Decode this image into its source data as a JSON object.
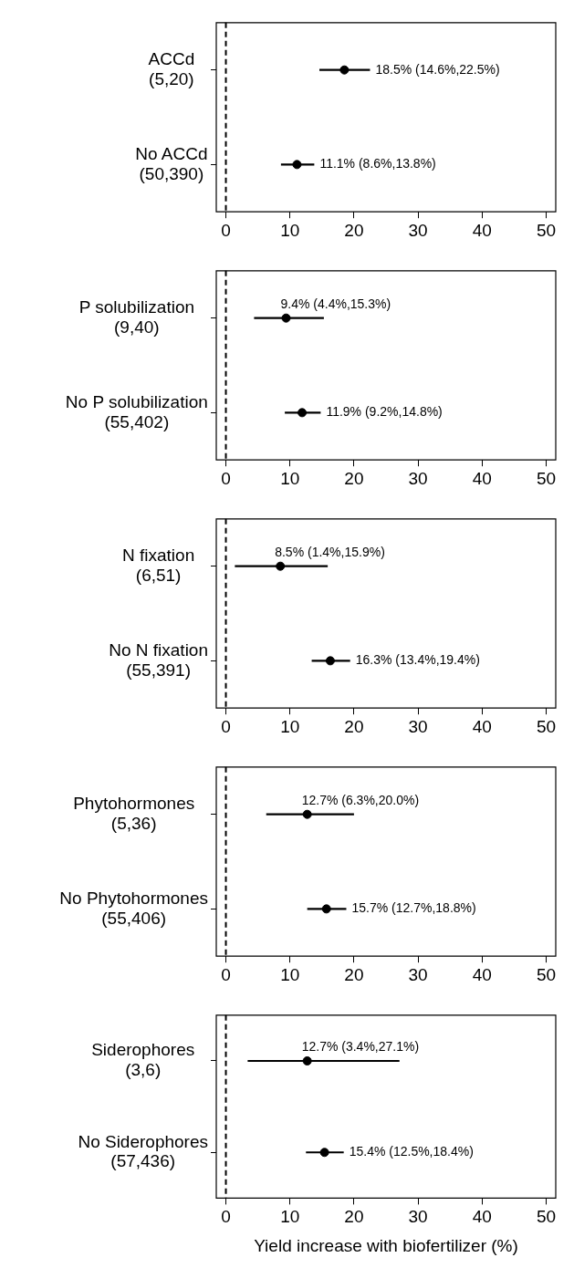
{
  "chart_data": [
    {
      "type": "scatter",
      "orientation": "horizontal",
      "categories": [
        "ACCd\n(5,20)",
        "No ACCd\n(50,390)"
      ],
      "values": [
        18.5,
        11.1
      ],
      "errors": [
        [
          14.6,
          22.5
        ],
        [
          8.6,
          13.8
        ]
      ],
      "value_labels": [
        "18.5% (14.6%,22.5%)",
        "11.1% (8.6%,13.8%)"
      ],
      "color": "#000000",
      "marker": "circle",
      "xlim": [
        -1.5,
        51.5
      ],
      "xticks": [
        0,
        10,
        20,
        30,
        40,
        50
      ],
      "ref_lines": [
        {
          "axis": "x",
          "value": 0,
          "line_style": "dashed",
          "color": "#000000"
        }
      ],
      "grid": false,
      "legend": false
    },
    {
      "type": "scatter",
      "orientation": "horizontal",
      "categories": [
        "P solubilization\n(9,40)",
        "No P solubilization\n(55,402)"
      ],
      "values": [
        9.4,
        11.9
      ],
      "errors": [
        [
          4.4,
          15.3
        ],
        [
          9.2,
          14.8
        ]
      ],
      "value_labels": [
        "9.4% (4.4%,15.3%)",
        "11.9% (9.2%,14.8%)"
      ],
      "color": "#000000",
      "marker": "circle",
      "xlim": [
        -1.5,
        51.5
      ],
      "xticks": [
        0,
        10,
        20,
        30,
        40,
        50
      ],
      "ref_lines": [
        {
          "axis": "x",
          "value": 0,
          "line_style": "dashed",
          "color": "#000000"
        }
      ],
      "grid": false,
      "legend": false
    },
    {
      "type": "scatter",
      "orientation": "horizontal",
      "categories": [
        "N fixation\n(6,51)",
        "No N fixation\n(55,391)"
      ],
      "values": [
        8.5,
        16.3
      ],
      "errors": [
        [
          1.4,
          15.9
        ],
        [
          13.4,
          19.4
        ]
      ],
      "value_labels": [
        "8.5% (1.4%,15.9%)",
        "16.3% (13.4%,19.4%)"
      ],
      "color": "#000000",
      "marker": "circle",
      "xlim": [
        -1.5,
        51.5
      ],
      "xticks": [
        0,
        10,
        20,
        30,
        40,
        50
      ],
      "ref_lines": [
        {
          "axis": "x",
          "value": 0,
          "line_style": "dashed",
          "color": "#000000"
        }
      ],
      "grid": false,
      "legend": false
    },
    {
      "type": "scatter",
      "orientation": "horizontal",
      "categories": [
        "Phytohormones\n(5,36)",
        "No Phytohormones\n(55,406)"
      ],
      "values": [
        12.7,
        15.7
      ],
      "errors": [
        [
          6.3,
          20.0
        ],
        [
          12.7,
          18.8
        ]
      ],
      "value_labels": [
        "12.7% (6.3%,20.0%)",
        "15.7% (12.7%,18.8%)"
      ],
      "color": "#000000",
      "marker": "circle",
      "xlim": [
        -1.5,
        51.5
      ],
      "xticks": [
        0,
        10,
        20,
        30,
        40,
        50
      ],
      "ref_lines": [
        {
          "axis": "x",
          "value": 0,
          "line_style": "dashed",
          "color": "#000000"
        }
      ],
      "grid": false,
      "legend": false
    },
    {
      "type": "scatter",
      "orientation": "horizontal",
      "categories": [
        "Siderophores\n(3,6)",
        "No Siderophores\n(57,436)"
      ],
      "values": [
        12.7,
        15.4
      ],
      "errors": [
        [
          3.4,
          27.1
        ],
        [
          12.5,
          18.4
        ]
      ],
      "value_labels": [
        "12.7% (3.4%,27.1%)",
        "15.4% (12.5%,18.4%)"
      ],
      "color": "#000000",
      "marker": "circle",
      "xlim": [
        -1.5,
        51.5
      ],
      "xticks": [
        0,
        10,
        20,
        30,
        40,
        50
      ],
      "ref_lines": [
        {
          "axis": "x",
          "value": 0,
          "line_style": "dashed",
          "color": "#000000"
        }
      ],
      "grid": false,
      "legend": false,
      "xlabel": "Yield increase with biofertilizer (%)"
    }
  ]
}
